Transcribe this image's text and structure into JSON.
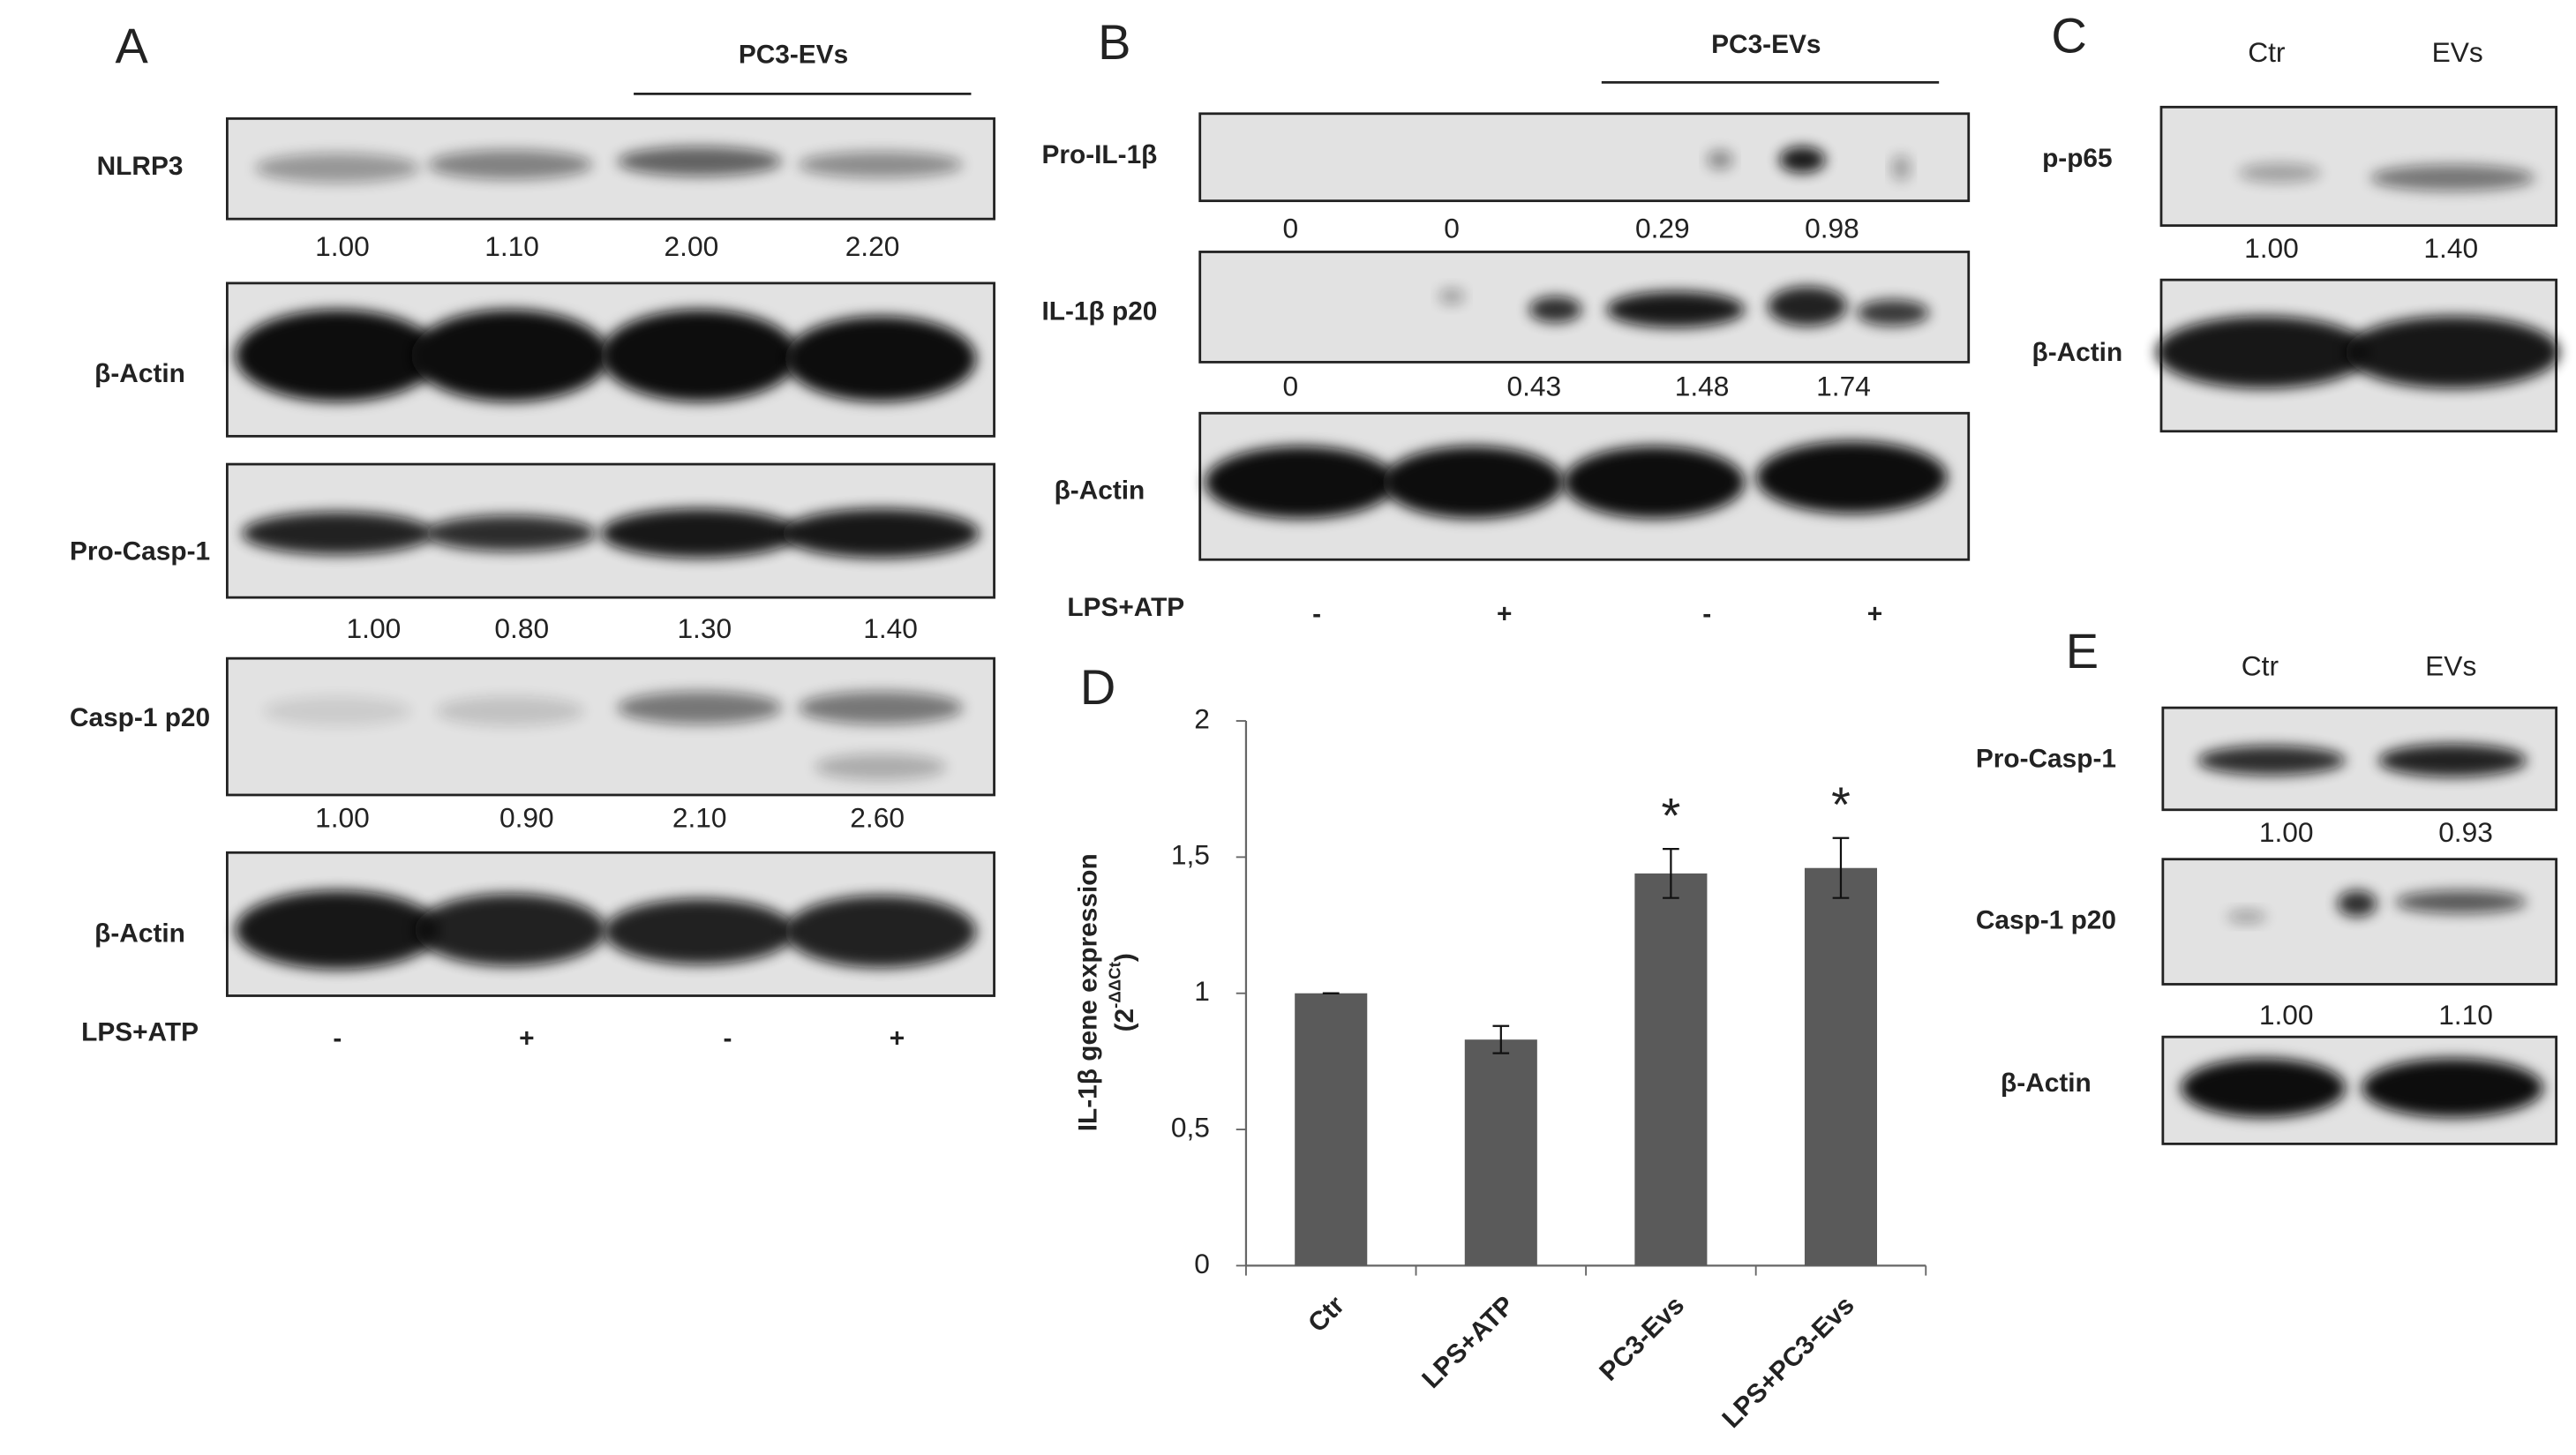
{
  "panels": [
    {
      "letter": "A",
      "group_label": "PC3-EVs",
      "blots": [
        {
          "label": "NLRP3",
          "values": [
            "1.00",
            "1.10",
            "2.00",
            "2.20"
          ]
        },
        {
          "label": "β-Actin"
        },
        {
          "label": "Pro-Casp-1",
          "values": [
            "1.00",
            "0.80",
            "1.30",
            "1.40"
          ]
        },
        {
          "label": "Casp-1 p20",
          "values": [
            "1.00",
            "0.90",
            "2.10",
            "2.60"
          ]
        },
        {
          "label": "β-Actin"
        }
      ],
      "treatment": {
        "label": "LPS+ATP",
        "signs": [
          "-",
          "+",
          "-",
          "+"
        ]
      }
    },
    {
      "letter": "B",
      "group_label": "PC3-EVs",
      "blots": [
        {
          "label": "Pro-IL-1β",
          "values": [
            "0",
            "0",
            "0.29",
            "0.98"
          ]
        },
        {
          "label": "IL-1β p20",
          "values": [
            "0",
            "0.43",
            "1.48",
            "1.74"
          ]
        },
        {
          "label": "β-Actin"
        }
      ],
      "treatment": {
        "label": "LPS+ATP",
        "signs": [
          "-",
          "+",
          "-",
          "+"
        ]
      }
    },
    {
      "letter": "C",
      "lanes": [
        "Ctr",
        "EVs"
      ],
      "blots": [
        {
          "label": "p-p65",
          "values": [
            "1.00",
            "1.40"
          ]
        },
        {
          "label": "β-Actin"
        }
      ]
    },
    {
      "letter": "E",
      "lanes": [
        "Ctr",
        "EVs"
      ],
      "blots": [
        {
          "label": "Pro-Casp-1",
          "values": [
            "1.00",
            "0.93"
          ]
        },
        {
          "label": "Casp-1 p20",
          "values": [
            "1.00",
            "1.10"
          ]
        },
        {
          "label": "β-Actin"
        }
      ]
    }
  ],
  "chart_data": {
    "type": "bar",
    "panel_label": "D",
    "y_label": "IL-1β gene expression",
    "y_label_unit": {
      "open": "(2",
      "exp": "-ΔΔCt",
      "close": ")"
    },
    "categories": [
      "Ctr",
      "LPS+ATP",
      "PC3-Evs",
      "LPS+PC3-Evs"
    ],
    "values": [
      1.0,
      0.83,
      1.44,
      1.46
    ],
    "errors": [
      0,
      0.05,
      0.09,
      0.11
    ],
    "value_annotations": [
      null,
      null,
      "*",
      "*"
    ],
    "color": "#5a5a5a",
    "ylim": [
      0,
      2
    ],
    "yticks": [
      0,
      {
        "value": 0.5,
        "label": "0,5"
      },
      1,
      {
        "value": 1.5,
        "label": "1,5"
      },
      2
    ]
  }
}
